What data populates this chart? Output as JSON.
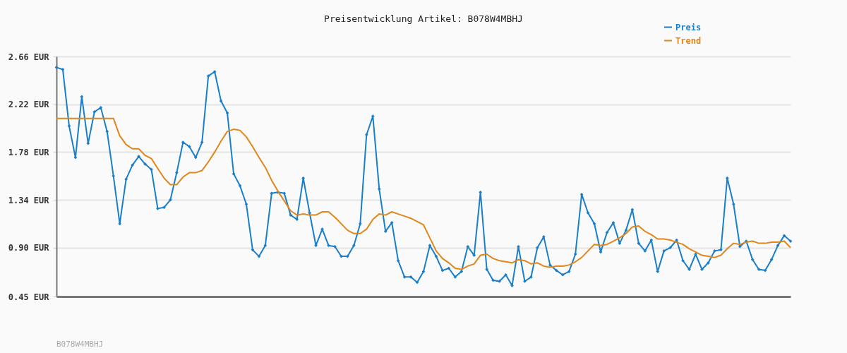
{
  "chart_data": {
    "type": "line",
    "title": "Preisentwicklung Artikel: B078W4MBHJ",
    "categories": [
      null,
      null,
      null,
      null,
      null,
      null,
      null,
      null,
      null,
      null,
      null,
      null,
      null,
      null,
      null,
      null,
      null,
      null,
      null,
      null,
      null,
      null,
      null,
      null,
      null,
      null,
      null,
      null,
      null,
      null,
      null,
      null,
      null,
      null,
      null,
      null,
      null,
      null,
      null,
      null,
      null,
      null,
      null,
      null,
      null,
      null,
      null,
      null,
      null,
      null,
      null,
      null,
      null,
      null,
      null,
      null,
      null,
      null,
      null,
      null,
      null,
      null,
      null,
      null,
      null,
      null,
      null,
      null,
      null,
      null,
      null,
      null,
      null,
      null,
      null,
      null,
      null,
      null,
      null,
      null,
      null,
      null,
      null,
      null,
      null,
      null,
      null,
      null,
      null,
      null,
      null,
      null,
      null,
      null,
      null,
      null,
      null,
      null,
      null,
      null,
      null,
      null,
      null,
      null,
      null,
      null,
      null,
      null,
      null,
      null,
      null,
      null,
      null,
      null,
      null,
      null,
      null
    ],
    "series": [
      {
        "name": "Preis",
        "color": "#1a7fc8",
        "marker": "diamond",
        "values": [
          2.56,
          2.54,
          2.02,
          1.73,
          2.29,
          1.86,
          2.15,
          2.19,
          1.97,
          1.56,
          1.12,
          1.53,
          1.66,
          1.74,
          1.67,
          1.62,
          1.26,
          1.27,
          1.34,
          1.59,
          1.87,
          1.83,
          1.73,
          1.87,
          2.48,
          2.52,
          2.25,
          2.14,
          1.58,
          1.47,
          1.3,
          0.88,
          0.82,
          0.92,
          1.4,
          1.41,
          1.4,
          1.2,
          1.16,
          1.54,
          1.22,
          0.92,
          1.07,
          0.92,
          0.91,
          0.82,
          0.82,
          0.92,
          1.12,
          1.94,
          2.11,
          1.44,
          1.05,
          1.13,
          0.78,
          0.63,
          0.63,
          0.58,
          0.68,
          0.92,
          0.82,
          0.69,
          0.71,
          0.63,
          0.68,
          0.91,
          0.83,
          1.41,
          0.7,
          0.6,
          0.59,
          0.65,
          0.55,
          0.91,
          0.59,
          0.63,
          0.9,
          1.0,
          0.74,
          0.69,
          0.65,
          0.68,
          0.84,
          1.39,
          1.22,
          1.12,
          0.86,
          1.04,
          1.13,
          0.94,
          1.06,
          1.25,
          0.94,
          0.87,
          0.97,
          0.68,
          0.87,
          0.9,
          0.97,
          0.78,
          0.7,
          0.84,
          0.7,
          0.76,
          0.87,
          0.88,
          1.54,
          1.3,
          0.91,
          0.96,
          0.79,
          0.7,
          0.69,
          0.79,
          0.92,
          1.01,
          0.96
        ]
      },
      {
        "name": "Trend",
        "color": "#e0861a",
        "marker": "none",
        "values": [
          2.09,
          2.09,
          2.09,
          2.09,
          2.09,
          2.09,
          2.09,
          2.09,
          2.09,
          2.09,
          1.93,
          1.85,
          1.81,
          1.81,
          1.75,
          1.72,
          1.63,
          1.54,
          1.48,
          1.48,
          1.55,
          1.59,
          1.59,
          1.61,
          1.69,
          1.78,
          1.88,
          1.97,
          1.99,
          1.98,
          1.92,
          1.83,
          1.73,
          1.64,
          1.52,
          1.42,
          1.33,
          1.24,
          1.2,
          1.21,
          1.2,
          1.2,
          1.23,
          1.23,
          1.18,
          1.12,
          1.06,
          1.03,
          1.03,
          1.07,
          1.16,
          1.21,
          1.2,
          1.23,
          1.21,
          1.19,
          1.17,
          1.14,
          1.11,
          0.99,
          0.87,
          0.8,
          0.76,
          0.71,
          0.7,
          0.73,
          0.75,
          0.83,
          0.84,
          0.8,
          0.78,
          0.77,
          0.76,
          0.79,
          0.78,
          0.75,
          0.76,
          0.73,
          0.72,
          0.73,
          0.73,
          0.74,
          0.77,
          0.81,
          0.87,
          0.93,
          0.92,
          0.93,
          0.96,
          0.99,
          1.03,
          1.09,
          1.1,
          1.05,
          1.02,
          0.98,
          0.98,
          0.97,
          0.95,
          0.93,
          0.89,
          0.86,
          0.83,
          0.82,
          0.81,
          0.83,
          0.89,
          0.94,
          0.93,
          0.95,
          0.96,
          0.94,
          0.94,
          0.95,
          0.95,
          0.96,
          0.9
        ]
      }
    ],
    "ylim": [
      0.45,
      2.66
    ],
    "yticks": [
      {
        "value": 0.45,
        "label": "0.45 EUR"
      },
      {
        "value": 0.9,
        "label": "0.90 EUR"
      },
      {
        "value": 1.34,
        "label": "1.34 EUR"
      },
      {
        "value": 1.78,
        "label": "1.78 EUR"
      },
      {
        "value": 2.22,
        "label": "2.22 EUR"
      },
      {
        "value": 2.66,
        "label": "2.66 EUR"
      }
    ],
    "grid": "y",
    "legend": "top right",
    "line_style": "solid",
    "annotations": [
      "B078W4MBHJ"
    ]
  }
}
